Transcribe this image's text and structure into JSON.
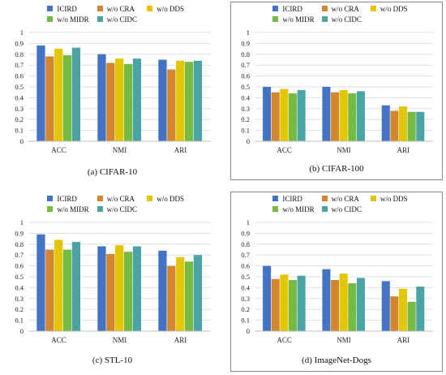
{
  "colors": {
    "ICIRD": "#4472C4",
    "w/o CRA": "#D4862F",
    "w/o DDS": "#E2C700",
    "w/o MIDR": "#74BA43",
    "w/o CIDC": "#4BA3A6"
  },
  "chart_data": [
    {
      "type": "bar",
      "caption": "(a) CIFAR-10",
      "categories": [
        "ACC",
        "NMI",
        "ARI"
      ],
      "series": [
        {
          "name": "ICIRD",
          "values": [
            0.88,
            0.8,
            0.75
          ]
        },
        {
          "name": "w/o CRA",
          "values": [
            0.78,
            0.72,
            0.66
          ]
        },
        {
          "name": "w/o DDS",
          "values": [
            0.85,
            0.76,
            0.74
          ]
        },
        {
          "name": "w/o MIDR",
          "values": [
            0.79,
            0.71,
            0.73
          ]
        },
        {
          "name": "w/o CIDC",
          "values": [
            0.86,
            0.76,
            0.74
          ]
        }
      ],
      "yticks": [
        "0",
        "0.1",
        "0.2",
        "0.3",
        "0.4",
        "0.5",
        "0.6",
        "0.7",
        "0.8",
        "0.9",
        "1"
      ],
      "ylim": [
        0,
        1
      ],
      "grid": true,
      "legend": "top"
    },
    {
      "type": "bar",
      "caption": "(b) CIFAR-100",
      "categories": [
        "ACC",
        "NMI",
        "ARI"
      ],
      "series": [
        {
          "name": "ICIRD",
          "values": [
            0.5,
            0.5,
            0.33
          ]
        },
        {
          "name": "w/o CRA",
          "values": [
            0.45,
            0.45,
            0.28
          ]
        },
        {
          "name": "w/o DDS",
          "values": [
            0.48,
            0.47,
            0.32
          ]
        },
        {
          "name": "w/o MIDR",
          "values": [
            0.44,
            0.44,
            0.27
          ]
        },
        {
          "name": "w/o CIDC",
          "values": [
            0.47,
            0.46,
            0.27
          ]
        }
      ],
      "yticks": [
        "0",
        "0.1",
        "0.2",
        "0.3",
        "0.4",
        "0.5",
        "0.6",
        "0.7",
        "0.8",
        "0.9",
        "1"
      ],
      "ylim": [
        0,
        1
      ],
      "grid": true,
      "legend": "top"
    },
    {
      "type": "bar",
      "caption": "(c) STL-10",
      "categories": [
        "ACC",
        "NMI",
        "ARI"
      ],
      "series": [
        {
          "name": "ICIRD",
          "values": [
            0.89,
            0.78,
            0.74
          ]
        },
        {
          "name": "w/o CRA",
          "values": [
            0.75,
            0.71,
            0.6
          ]
        },
        {
          "name": "w/o DDS",
          "values": [
            0.84,
            0.79,
            0.68
          ]
        },
        {
          "name": "w/o MIDR",
          "values": [
            0.75,
            0.73,
            0.64
          ]
        },
        {
          "name": "w/o CIDC",
          "values": [
            0.82,
            0.78,
            0.7
          ]
        }
      ],
      "yticks": [
        "0",
        "0.1",
        "0.2",
        "0.3",
        "0.4",
        "0.5",
        "0.6",
        "0.7",
        "0.8",
        "0.9",
        "1"
      ],
      "ylim": [
        0,
        1
      ],
      "grid": true,
      "legend": "top"
    },
    {
      "type": "bar",
      "caption": "(d) ImageNet-Dogs",
      "categories": [
        "ACC",
        "NMI",
        "ARI"
      ],
      "series": [
        {
          "name": "ICIRD",
          "values": [
            0.6,
            0.57,
            0.46
          ]
        },
        {
          "name": "w/o CRA",
          "values": [
            0.48,
            0.47,
            0.32
          ]
        },
        {
          "name": "w/o DDS",
          "values": [
            0.52,
            0.53,
            0.39
          ]
        },
        {
          "name": "w/o MIDR",
          "values": [
            0.47,
            0.44,
            0.27
          ]
        },
        {
          "name": "w/o CIDC",
          "values": [
            0.51,
            0.49,
            0.41
          ]
        }
      ],
      "yticks": [
        "0",
        "0.1",
        "0.2",
        "0.3",
        "0.4",
        "0.5",
        "0.6",
        "0.7",
        "0.8",
        "0.9",
        "1"
      ],
      "ylim": [
        0,
        1
      ],
      "grid": true,
      "legend": "top"
    }
  ]
}
